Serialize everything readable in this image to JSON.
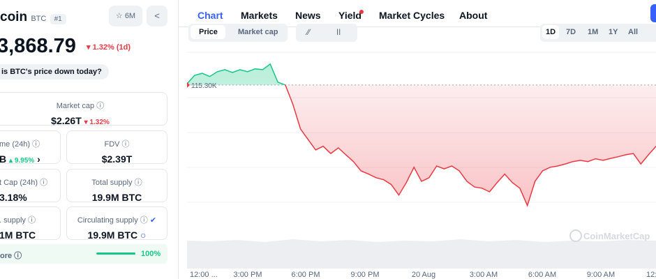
{
  "header": {
    "name": "coin",
    "symbol": "BTC",
    "rank": "#1",
    "watchlist": "6M",
    "price": "3,868.79",
    "change": "1.32% (1d)",
    "question": "is BTC's price down today?"
  },
  "stats": [
    {
      "label": "Market cap",
      "value": "$2.26T",
      "change": "1.32%"
    },
    {
      "label": "me (24h)",
      "value": "B",
      "change": "9.95%"
    },
    {
      "label": "FDV",
      "value": "$2.39T"
    },
    {
      "label": "t Cap (24h)",
      "value": "3.18%"
    },
    {
      "label": "Total supply",
      "value": "19.9M BTC"
    },
    {
      "label": ". supply",
      "value": "1M BTC"
    },
    {
      "label": "Circulating supply",
      "value": "19.9M BTC"
    }
  ],
  "score": {
    "label": "ore",
    "value": "100%"
  },
  "tabs": [
    "Chart",
    "Markets",
    "News",
    "Yield",
    "Market Cycles",
    "About"
  ],
  "modes": [
    "Price",
    "Market cap"
  ],
  "ranges": [
    "1D",
    "7D",
    "1M",
    "1Y",
    "All"
  ],
  "watermark": "CoinMarketCap",
  "chart_data": {
    "type": "line",
    "xticks": [
      "12:00 ...",
      "3:00 PM",
      "6:00 PM",
      "9:00 PM",
      "20 Aug",
      "3:00 AM",
      "6:00 AM",
      "9:00 AM",
      "12:..."
    ],
    "reference": {
      "value": 115300,
      "label": "115.30K"
    },
    "ylim": [
      111440,
      116110
    ],
    "up_color": "#16c784",
    "down_color": "#ea3943",
    "values": [
      115330,
      115540,
      115590,
      115510,
      115630,
      115680,
      115610,
      115680,
      115630,
      115700,
      115680,
      115820,
      115370,
      115300,
      114820,
      114210,
      113950,
      113690,
      113780,
      113600,
      113740,
      113570,
      113400,
      113170,
      113090,
      113000,
      112950,
      112830,
      112570,
      112880,
      113260,
      112910,
      113000,
      113290,
      113220,
      113290,
      113170,
      112910,
      112770,
      112740,
      112650,
      112880,
      113090,
      112880,
      112740,
      112310,
      112910,
      113170,
      113260,
      113290,
      113340,
      113400,
      113430,
      113400,
      113470,
      113430,
      113480,
      113520,
      113570,
      113600,
      113340,
      113570,
      113780
    ]
  }
}
